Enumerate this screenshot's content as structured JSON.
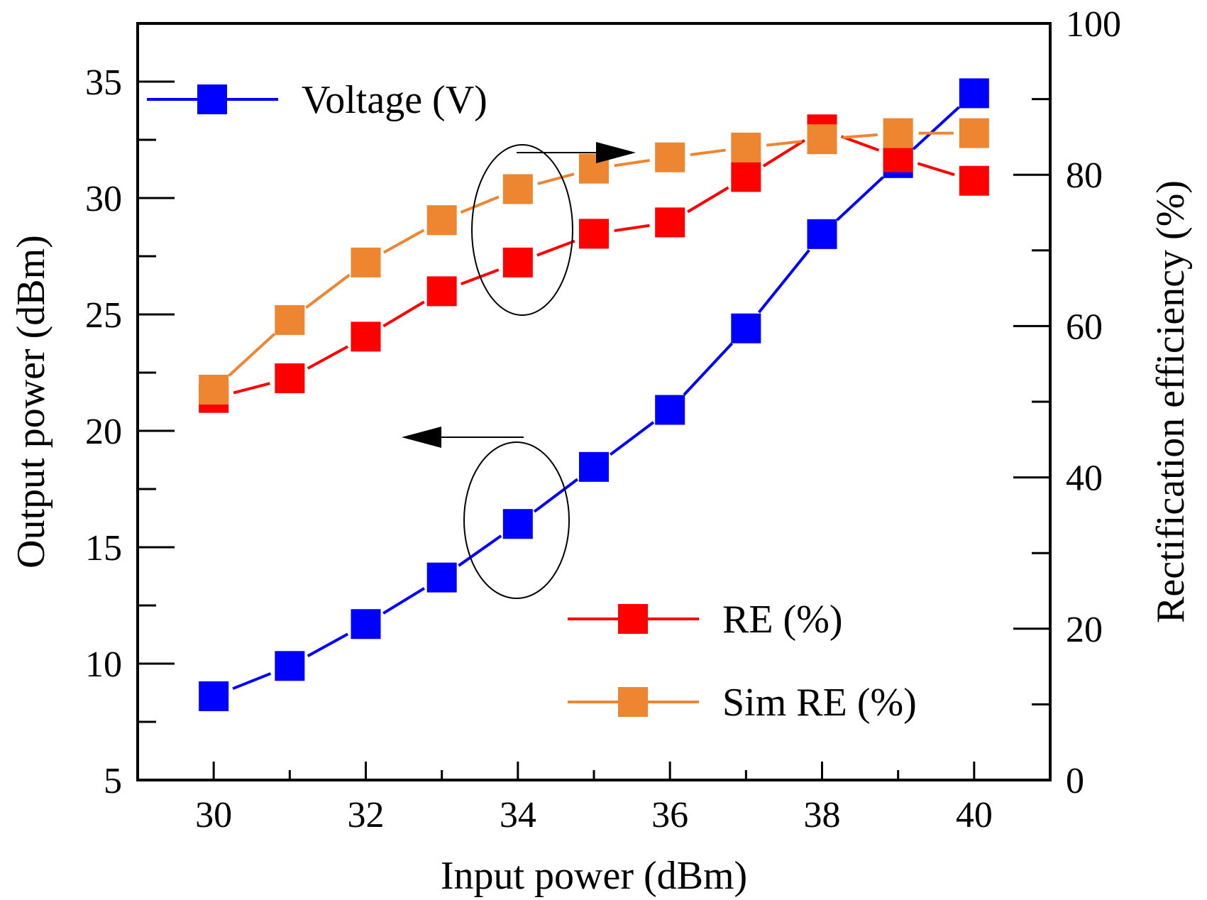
{
  "chart_data": {
    "type": "line",
    "xlabel": "Input power (dBm)",
    "ylabel_left": "Output power (dBm)",
    "ylabel_right": "Rectification efficiency (%)",
    "xlim": [
      29,
      41
    ],
    "ylim_left": [
      5,
      37.5
    ],
    "ylim_right": [
      0,
      100
    ],
    "x_ticks": [
      30,
      32,
      34,
      36,
      38,
      40
    ],
    "y_left_ticks": [
      5,
      10,
      15,
      20,
      25,
      30,
      35
    ],
    "y_right_ticks": [
      0,
      20,
      40,
      60,
      80,
      100
    ],
    "grid": false,
    "x": [
      30,
      31,
      32,
      33,
      34,
      35,
      36,
      37,
      38,
      39,
      40
    ],
    "series": [
      {
        "name": "Voltage (V)",
        "axis": "left",
        "color": "#0000ff",
        "marker": "square",
        "values": [
          8.6,
          9.9,
          11.7,
          13.7,
          16.0,
          18.45,
          20.9,
          24.4,
          28.45,
          31.5,
          34.5
        ]
      },
      {
        "name": "RE (%)",
        "axis": "right",
        "color": "#ff0000",
        "marker": "square",
        "values": [
          50.5,
          53.1,
          58.6,
          64.6,
          68.4,
          72.2,
          73.7,
          79.7,
          86.0,
          82.3,
          79.2
        ]
      },
      {
        "name": "Sim RE (%)",
        "axis": "right",
        "color": "#ee8530",
        "marker": "square",
        "values": [
          51.6,
          60.8,
          68.4,
          74.0,
          78.1,
          80.8,
          82.3,
          83.6,
          84.7,
          85.5,
          85.5
        ]
      }
    ],
    "annotations": [
      {
        "type": "ellipse-arrow",
        "target_axis": "right",
        "direction": "right"
      },
      {
        "type": "ellipse-arrow",
        "target_axis": "left",
        "direction": "left"
      }
    ]
  }
}
